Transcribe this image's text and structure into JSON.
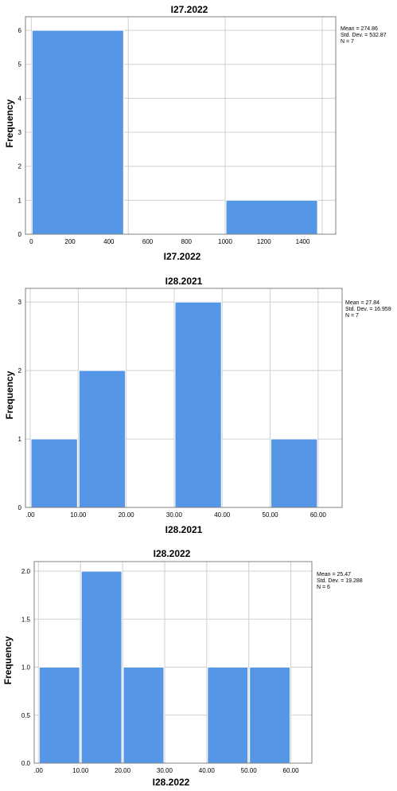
{
  "colors": {
    "bar": "#5596e6",
    "grid": "#cfcfcf",
    "frame": "#808080"
  },
  "chart_data": [
    {
      "type": "bar",
      "title": "I27.2022",
      "xlabel": "I27.2022",
      "ylabel": "Frequency",
      "bins": [
        [
          0,
          480
        ],
        [
          1000,
          1480
        ]
      ],
      "values": [
        6,
        1
      ],
      "xticks": [
        "0",
        "200",
        "400",
        "600",
        "800",
        "1000",
        "1200",
        "1400"
      ],
      "xtick_values": [
        0,
        200,
        400,
        600,
        800,
        1000,
        1200,
        1400
      ],
      "xlim": [
        -30,
        1570
      ],
      "yticks": [
        "0",
        "1",
        "2",
        "3",
        "4",
        "5",
        "6"
      ],
      "ytick_values": [
        0,
        1,
        2,
        3,
        4,
        5,
        6
      ],
      "ylim": [
        0,
        6.4
      ],
      "xgrid": [
        0,
        500,
        1000,
        1500
      ],
      "stats": [
        "Mean = 274.86",
        "Std. Dev. = 532.87",
        "N = 7"
      ]
    },
    {
      "type": "bar",
      "title": "I28.2021",
      "xlabel": "I28.2021",
      "ylabel": "Frequency",
      "bins": [
        [
          0,
          10
        ],
        [
          10,
          20
        ],
        [
          30,
          40
        ],
        [
          50,
          60
        ]
      ],
      "values": [
        1,
        2,
        3,
        1
      ],
      "xticks": [
        ".00",
        "10.00",
        "20.00",
        "30.00",
        "40.00",
        "50.00",
        "60.00"
      ],
      "xtick_values": [
        0,
        10,
        20,
        30,
        40,
        50,
        60
      ],
      "xlim": [
        -1,
        65
      ],
      "yticks": [
        "0",
        "1",
        "2",
        "3"
      ],
      "ytick_values": [
        0,
        1,
        2,
        3
      ],
      "ylim": [
        0,
        3.2
      ],
      "xgrid": [
        0,
        10,
        20,
        30,
        40,
        50,
        60
      ],
      "stats": [
        "Mean = 27.84",
        "Std. Dev. = 16.959",
        "N = 7"
      ]
    },
    {
      "type": "bar",
      "title": "I28.2022",
      "xlabel": "I28.2022",
      "ylabel": "Frequency",
      "bins": [
        [
          0,
          10
        ],
        [
          10,
          20
        ],
        [
          20,
          30
        ],
        [
          40,
          50
        ],
        [
          50,
          60
        ]
      ],
      "values": [
        1,
        2,
        1,
        1,
        1
      ],
      "xticks": [
        ".00",
        "10.00",
        "20.00",
        "30.00",
        "40.00",
        "50.00",
        "60.00"
      ],
      "xtick_values": [
        0,
        10,
        20,
        30,
        40,
        50,
        60
      ],
      "xlim": [
        -1,
        65
      ],
      "yticks": [
        "0.0",
        "0.5",
        "1.0",
        "1.5",
        "2.0"
      ],
      "ytick_values": [
        0,
        0.5,
        1,
        1.5,
        2
      ],
      "ylim": [
        0,
        2.1
      ],
      "xgrid": [
        0,
        10,
        20,
        30,
        40,
        50,
        60
      ],
      "stats": [
        "Mean = 25.47",
        "Std. Dev. = 19.288",
        "N = 6"
      ]
    }
  ]
}
